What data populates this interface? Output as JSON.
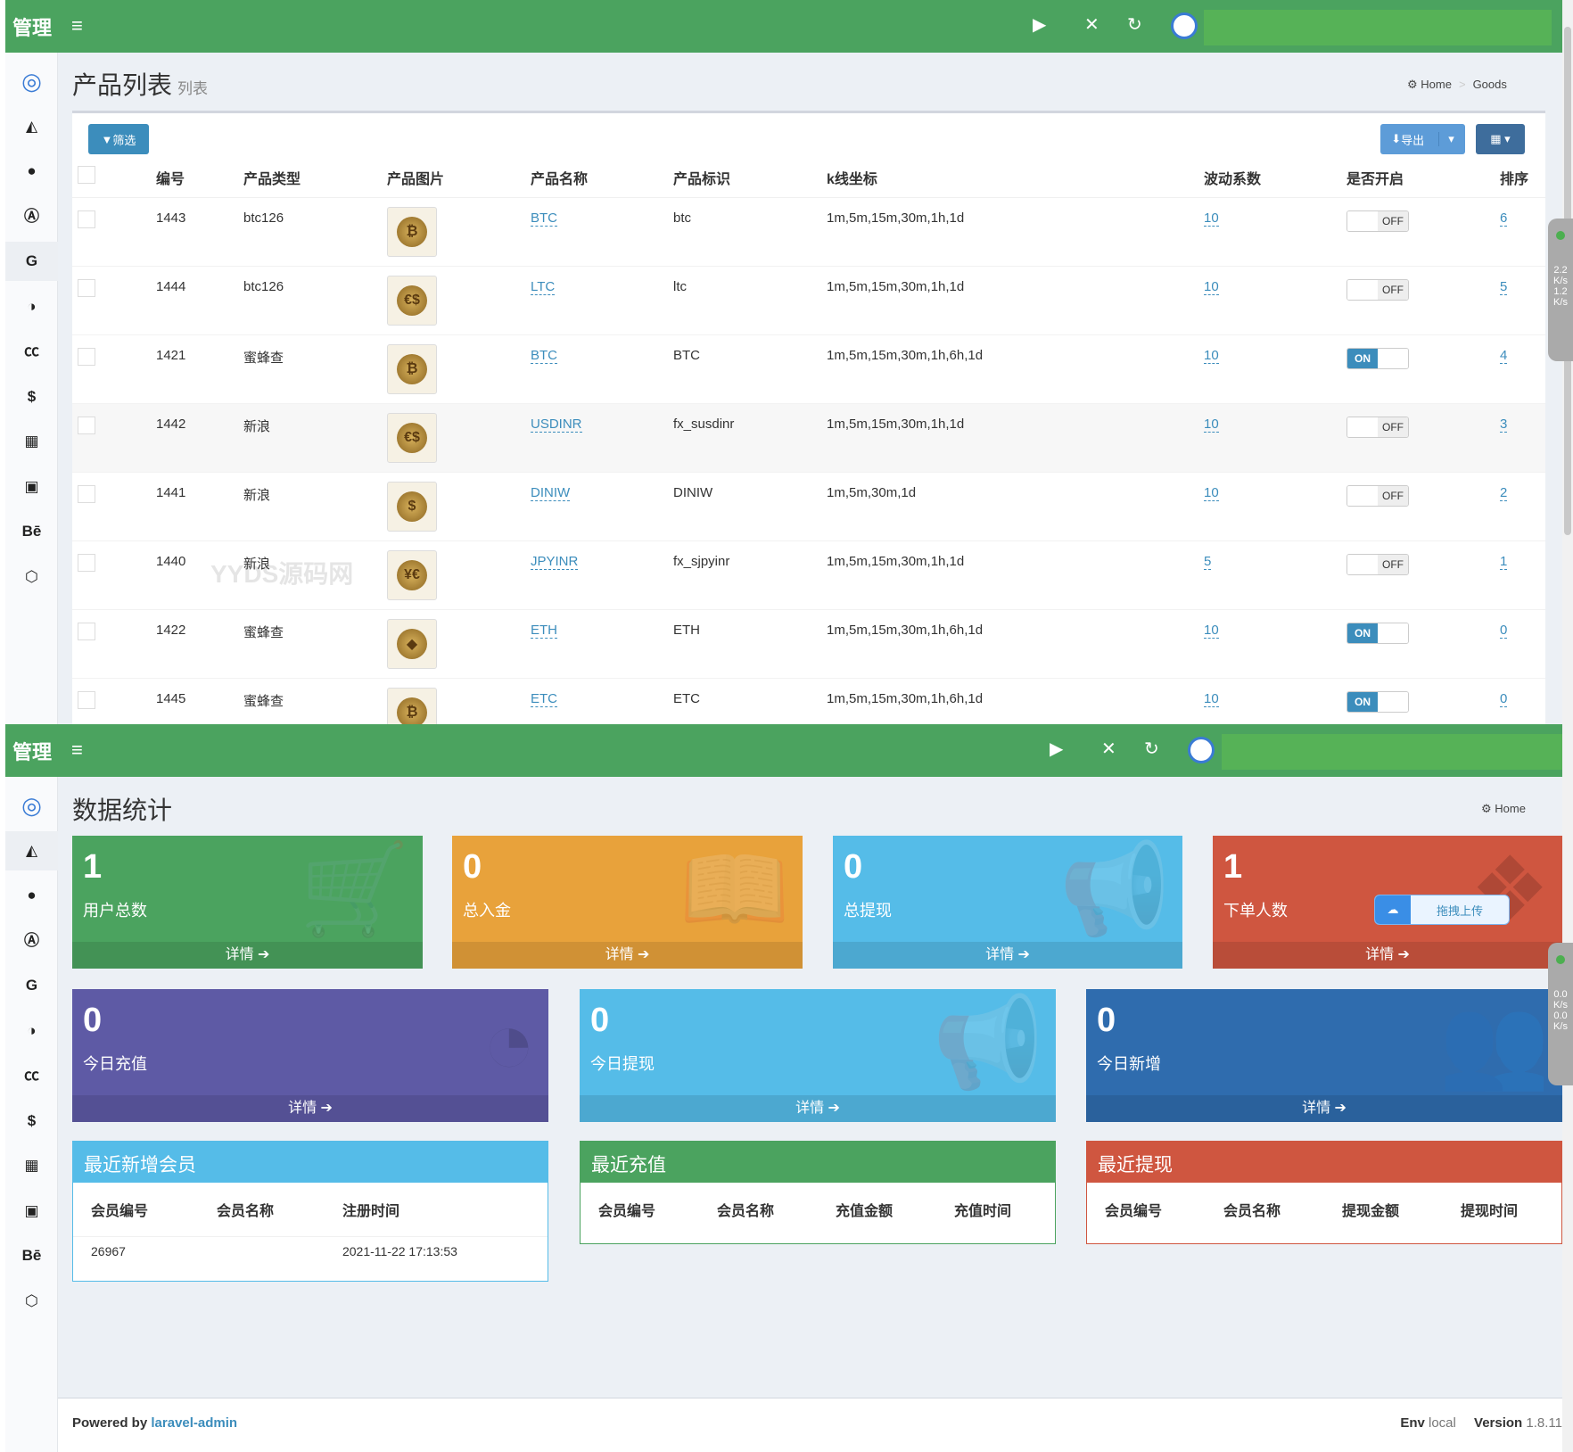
{
  "app": {
    "logo": "管理",
    "menu_icon": "≡"
  },
  "sidebar_icons": [
    "logo-icon",
    "area-chart-icon",
    "user-icon",
    "app-store-icon",
    "google-icon",
    "adjust-icon",
    "creative-commons-icon",
    "dollar-icon",
    "calculator-icon",
    "image-icon",
    "behance-icon",
    "cog-icon"
  ],
  "sidebar_glyphs": [
    "◎",
    "◭",
    "●",
    "Ⓐ",
    "G",
    "◑",
    "㏄",
    "$",
    "▦",
    "▣",
    "Bē",
    "⬡"
  ],
  "products": {
    "title": "产品列表",
    "subtitle": "列表",
    "breadcrumb": [
      "Home",
      "Goods"
    ],
    "filter_label": "筛选",
    "export_label": "导出",
    "columns": [
      "编号",
      "产品类型",
      "产品图片",
      "产品名称",
      "产品标识",
      "k线坐标",
      "波动系数",
      "是否开启",
      "排序"
    ],
    "rows": [
      {
        "id": "1443",
        "type": "btc126",
        "img": "₿",
        "name": "BTC",
        "code": "btc",
        "kline": "1m,5m,15m,30m,1h,1d",
        "factor": "10",
        "on": false,
        "sort": "6"
      },
      {
        "id": "1444",
        "type": "btc126",
        "img": "€$",
        "name": "LTC",
        "code": "ltc",
        "kline": "1m,5m,15m,30m,1h,1d",
        "factor": "10",
        "on": false,
        "sort": "5"
      },
      {
        "id": "1421",
        "type": "蜜蜂查",
        "img": "₿",
        "name": "BTC",
        "code": "BTC",
        "kline": "1m,5m,15m,30m,1h,6h,1d",
        "factor": "10",
        "on": true,
        "sort": "4"
      },
      {
        "id": "1442",
        "type": "新浪",
        "img": "€$",
        "name": "USDINR",
        "code": "fx_susdinr",
        "kline": "1m,5m,15m,30m,1h,1d",
        "factor": "10",
        "on": false,
        "sort": "3"
      },
      {
        "id": "1441",
        "type": "新浪",
        "img": "$",
        "name": "DINIW",
        "code": "DINIW",
        "kline": "1m,5m,30m,1d",
        "factor": "10",
        "on": false,
        "sort": "2"
      },
      {
        "id": "1440",
        "type": "新浪",
        "img": "¥€",
        "name": "JPYINR",
        "code": "fx_sjpyinr",
        "kline": "1m,5m,15m,30m,1h,1d",
        "factor": "5",
        "on": false,
        "sort": "1"
      },
      {
        "id": "1422",
        "type": "蜜蜂查",
        "img": "◆",
        "name": "ETH",
        "code": "ETH",
        "kline": "1m,5m,15m,30m,1h,6h,1d",
        "factor": "10",
        "on": true,
        "sort": "0"
      },
      {
        "id": "1445",
        "type": "蜜蜂查",
        "img": "₿",
        "name": "ETC",
        "code": "ETC",
        "kline": "1m,5m,15m,30m,1h,6h,1d",
        "factor": "10",
        "on": true,
        "sort": "0"
      }
    ],
    "on_label": "ON",
    "off_label": "OFF",
    "watermark": "YYDS源码网"
  },
  "dashboard": {
    "title": "数据统计",
    "breadcrumb": "Home",
    "detail_label": "详情 ➔",
    "stats": [
      {
        "value": "1",
        "label": "用户总数",
        "color": "#4ba35f",
        "icon": "🛒"
      },
      {
        "value": "0",
        "label": "总入金",
        "color": "#e8a23b",
        "icon": "📖"
      },
      {
        "value": "0",
        "label": "总提现",
        "color": "#55bce8",
        "icon": "📢"
      },
      {
        "value": "1",
        "label": "下单人数",
        "color": "#cf5640",
        "icon": "❖"
      },
      {
        "value": "0",
        "label": "今日充值",
        "color": "#5e5aa5",
        "icon": "◔"
      },
      {
        "value": "0",
        "label": "今日提现",
        "color": "#55bce8",
        "icon": "📢"
      },
      {
        "value": "0",
        "label": "今日新增",
        "color": "#2f6cae",
        "icon": "👥"
      }
    ],
    "upload_label": "拖拽上传",
    "cards": [
      {
        "title": "最近新增会员",
        "color": "#55bce8",
        "columns": [
          "会员编号",
          "会员名称",
          "注册时间"
        ],
        "rows": [
          [
            "26967",
            "",
            "2021-11-22 17:13:53"
          ]
        ]
      },
      {
        "title": "最近充值",
        "color": "#4ba35f",
        "columns": [
          "会员编号",
          "会员名称",
          "充值金额",
          "充值时间"
        ],
        "rows": []
      },
      {
        "title": "最近提现",
        "color": "#cf5640",
        "columns": [
          "会员编号",
          "会员名称",
          "提现金额",
          "提现时间"
        ],
        "rows": []
      }
    ]
  },
  "footer": {
    "powered": "Powered by",
    "link": "laravel-admin",
    "env_label": "Env",
    "env": "local",
    "version_label": "Version",
    "version": "1.8.11"
  },
  "widgets": {
    "top": [
      "2.2",
      "K/s",
      "1.2",
      "K/s"
    ],
    "bottom": [
      "0.0",
      "K/s",
      "0.0",
      "K/s"
    ]
  }
}
